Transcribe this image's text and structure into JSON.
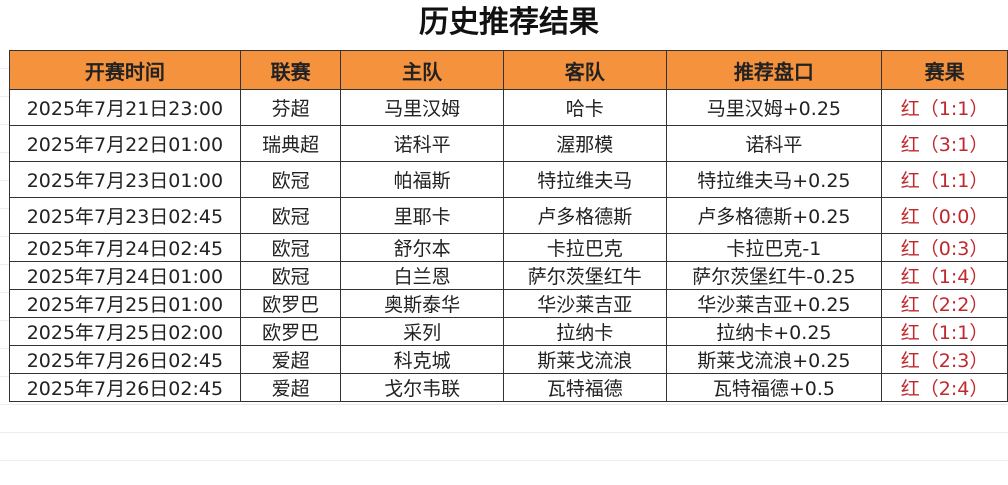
{
  "title": "历史推荐结果",
  "headers": [
    "开赛时间",
    "联赛",
    "主队",
    "客队",
    "推荐盘口",
    "赛果"
  ],
  "accent_color": "#f5923e",
  "result_color": "#c0282d",
  "rows": [
    [
      "2025年7月21日23:00",
      "芬超",
      "马里汉姆",
      "哈卡",
      "马里汉姆+0.25",
      "红（1:1）"
    ],
    [
      "2025年7月22日01:00",
      "瑞典超",
      "诺科平",
      "渥那模",
      "诺科平",
      "红（3:1）"
    ],
    [
      "2025年7月23日01:00",
      "欧冠",
      "帕福斯",
      "特拉维夫马",
      "特拉维夫马+0.25",
      "红（1:1）"
    ],
    [
      "2025年7月23日02:45",
      "欧冠",
      "里耶卡",
      "卢多格德斯",
      "卢多格德斯+0.25",
      "红（0:0）"
    ],
    [
      "2025年7月24日02:45",
      "欧冠",
      "舒尔本",
      "卡拉巴克",
      "卡拉巴克-1",
      "红（0:3）"
    ],
    [
      "2025年7月24日01:00",
      "欧冠",
      "白兰恩",
      "萨尔茨堡红牛",
      "萨尔茨堡红牛-0.25",
      "红（1:4）"
    ],
    [
      "2025年7月25日01:00",
      "欧罗巴",
      "奥斯泰华",
      "华沙莱吉亚",
      "华沙莱吉亚+0.25",
      "红（2:2）"
    ],
    [
      "2025年7月25日02:00",
      "欧罗巴",
      "采列",
      "拉纳卡",
      "拉纳卡+0.25",
      "红（1:1）"
    ],
    [
      "2025年7月26日02:45",
      "爱超",
      "科克城",
      "斯莱戈流浪",
      "斯莱戈流浪+0.25",
      "红（2:3）"
    ],
    [
      "2025年7月26日02:45",
      "爱超",
      "戈尔韦联",
      "瓦特福德",
      "瓦特福德+0.5",
      "红（2:4）"
    ]
  ]
}
